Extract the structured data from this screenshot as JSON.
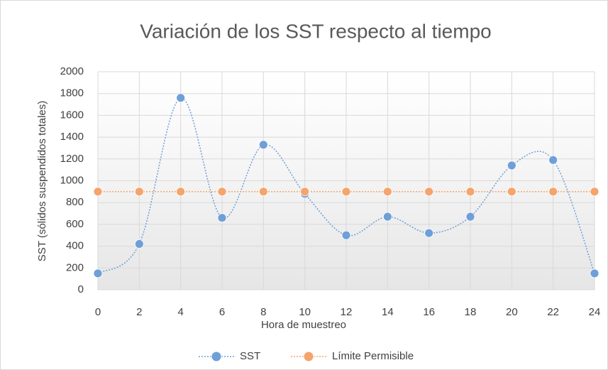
{
  "chart_data": {
    "type": "line",
    "title": "Variación de los SST respecto al tiempo",
    "xlabel": "Hora de muestreo",
    "ylabel": "SST (sólidos suspendidos totales)",
    "x": [
      0,
      2,
      4,
      6,
      8,
      10,
      12,
      14,
      16,
      18,
      20,
      22,
      24
    ],
    "series": [
      {
        "name": "SST",
        "color": "#6f9fd8",
        "values": [
          150,
          420,
          1760,
          660,
          1330,
          880,
          500,
          670,
          520,
          670,
          1140,
          1190,
          150
        ]
      },
      {
        "name": "Límite Permisible",
        "color": "#f4a46c",
        "values": [
          900,
          900,
          900,
          900,
          900,
          900,
          900,
          900,
          900,
          900,
          900,
          900,
          900
        ]
      }
    ],
    "xlim": [
      0,
      24
    ],
    "xticks": [
      0,
      2,
      4,
      6,
      8,
      10,
      12,
      14,
      16,
      18,
      20,
      22,
      24
    ],
    "ylim": [
      0,
      2000
    ],
    "yticks": [
      0,
      200,
      400,
      600,
      800,
      1000,
      1200,
      1400,
      1600,
      1800,
      2000
    ],
    "grid": true,
    "legend": "bottom"
  }
}
